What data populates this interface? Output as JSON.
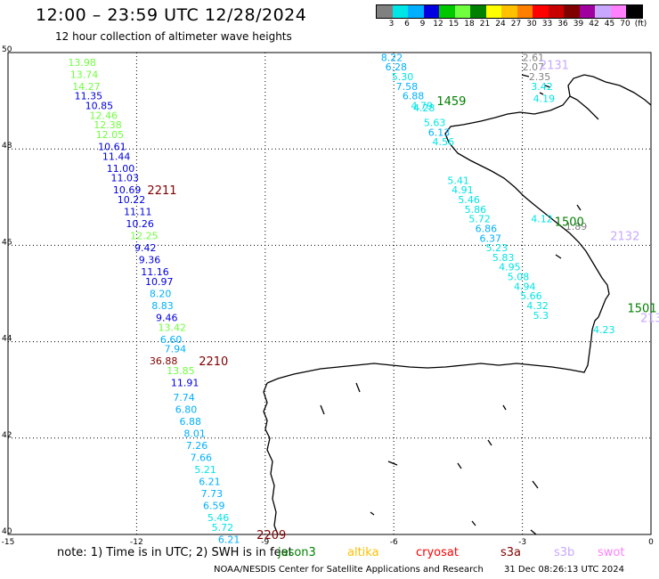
{
  "header": {
    "title": "12:00 – 23:59 UTC 12/28/2024",
    "subtitle": "12 hour collection of altimeter wave heights"
  },
  "legend": {
    "unit": "(ft)",
    "labels": [
      "3",
      "6",
      "9",
      "12",
      "15",
      "18",
      "21",
      "24",
      "27",
      "30",
      "33",
      "36",
      "39",
      "42",
      "45",
      "70"
    ],
    "colors": [
      "#808080",
      "#00e5e5",
      "#00b0ff",
      "#0000e0",
      "#00c800",
      "#70ff40",
      "#008000",
      "#ffff00",
      "#ffc000",
      "#ff8000",
      "#ff0000",
      "#c80000",
      "#800000",
      "#a000a0",
      "#c8a8ff",
      "#ff80ff",
      "#000000"
    ]
  },
  "axes": {
    "x_labels": [
      "-15",
      "-12",
      "-9",
      "-6",
      "-3",
      "0"
    ],
    "y_labels": [
      "50",
      "48",
      "46",
      "44",
      "42",
      "40"
    ]
  },
  "tracks": [
    {
      "pass": "2209",
      "pass_color": "#800000",
      "color_dots": "#00b0ff",
      "points": [
        {
          "v": "13.98",
          "lon": -13.6,
          "lat": 49.8,
          "c": "#70ff40"
        },
        {
          "v": "13.74",
          "lon": -13.55,
          "lat": 49.55,
          "c": "#70ff40"
        },
        {
          "v": "14.27",
          "lon": -13.5,
          "lat": 49.3,
          "c": "#70ff40"
        },
        {
          "v": "11.35",
          "lon": -13.45,
          "lat": 49.1,
          "c": "#0000e0"
        },
        {
          "v": "10.85",
          "lon": -13.2,
          "lat": 48.9,
          "c": "#0000e0"
        },
        {
          "v": "12.46",
          "lon": -13.1,
          "lat": 48.7,
          "c": "#70ff40"
        },
        {
          "v": "12.38",
          "lon": -13.0,
          "lat": 48.5,
          "c": "#70ff40"
        },
        {
          "v": "12.05",
          "lon": -12.95,
          "lat": 48.3,
          "c": "#70ff40"
        },
        {
          "v": "10.61",
          "lon": -12.9,
          "lat": 48.05,
          "c": "#0000e0"
        },
        {
          "v": "11.44",
          "lon": -12.8,
          "lat": 47.85,
          "c": "#0000e0"
        },
        {
          "v": "11.00",
          "lon": -12.7,
          "lat": 47.6,
          "c": "#0000e0"
        },
        {
          "v": "11.03",
          "lon": -12.6,
          "lat": 47.4,
          "c": "#0000e0"
        },
        {
          "v": "10.69",
          "lon": -12.55,
          "lat": 47.15,
          "c": "#0000e0"
        },
        {
          "v": "10.22",
          "lon": -12.45,
          "lat": 46.95,
          "c": "#0000e0"
        },
        {
          "v": "11.11",
          "lon": -12.3,
          "lat": 46.7,
          "c": "#0000e0"
        },
        {
          "v": "10.26",
          "lon": -12.25,
          "lat": 46.45,
          "c": "#0000e0"
        },
        {
          "v": "12.25",
          "lon": -12.15,
          "lat": 46.2,
          "c": "#70ff40"
        },
        {
          "v": "9.42",
          "lon": -12.05,
          "lat": 45.95,
          "c": "#0000e0"
        },
        {
          "v": "9.36",
          "lon": -11.95,
          "lat": 45.7,
          "c": "#0000e0"
        },
        {
          "v": "11.16",
          "lon": -11.9,
          "lat": 45.45,
          "c": "#0000e0"
        },
        {
          "v": "10.97",
          "lon": -11.8,
          "lat": 45.25,
          "c": "#0000e0"
        },
        {
          "v": "8.20",
          "lon": -11.7,
          "lat": 45.0,
          "c": "#00b0ff"
        },
        {
          "v": "8.83",
          "lon": -11.65,
          "lat": 44.75,
          "c": "#00b0ff"
        },
        {
          "v": "9.46",
          "lon": -11.55,
          "lat": 44.5,
          "c": "#0000e0"
        },
        {
          "v": "13.42",
          "lon": -11.5,
          "lat": 44.3,
          "c": "#70ff40"
        },
        {
          "v": "6.60",
          "lon": -11.45,
          "lat": 44.05,
          "c": "#00b0ff"
        },
        {
          "v": "7.94",
          "lon": -11.35,
          "lat": 43.85,
          "c": "#00b0ff"
        },
        {
          "v": "36.88",
          "lon": -11.7,
          "lat": 43.6,
          "c": "#800000"
        },
        {
          "v": "13.85",
          "lon": -11.3,
          "lat": 43.4,
          "c": "#70ff40"
        },
        {
          "v": "11.91",
          "lon": -11.2,
          "lat": 43.15,
          "c": "#0000e0"
        },
        {
          "v": "7.74",
          "lon": -11.15,
          "lat": 42.85,
          "c": "#00b0ff"
        },
        {
          "v": "6.80",
          "lon": -11.1,
          "lat": 42.6,
          "c": "#00b0ff"
        },
        {
          "v": "6.88",
          "lon": -11.0,
          "lat": 42.35,
          "c": "#00b0ff"
        },
        {
          "v": "8.01",
          "lon": -10.9,
          "lat": 42.1,
          "c": "#00b0ff"
        },
        {
          "v": "7.26",
          "lon": -10.85,
          "lat": 41.85,
          "c": "#00b0ff"
        },
        {
          "v": "7.66",
          "lon": -10.75,
          "lat": 41.6,
          "c": "#00b0ff"
        },
        {
          "v": "5.21",
          "lon": -10.65,
          "lat": 41.35,
          "c": "#00e5e5"
        },
        {
          "v": "6.21",
          "lon": -10.55,
          "lat": 41.1,
          "c": "#00b0ff"
        },
        {
          "v": "7.73",
          "lon": -10.5,
          "lat": 40.85,
          "c": "#00b0ff"
        },
        {
          "v": "6.59",
          "lon": -10.45,
          "lat": 40.6,
          "c": "#00b0ff"
        },
        {
          "v": "5.46",
          "lon": -10.35,
          "lat": 40.35,
          "c": "#00e5e5"
        },
        {
          "v": "5.72",
          "lon": -10.25,
          "lat": 40.15,
          "c": "#00e5e5"
        },
        {
          "v": "6.21",
          "lon": -10.1,
          "lat": 39.9,
          "c": "#00b0ff"
        }
      ]
    }
  ],
  "pass_labels": [
    {
      "text": "2211",
      "lon": -11.75,
      "lat": 47.15,
      "c": "#800000"
    },
    {
      "text": "2210",
      "lon": -10.55,
      "lat": 43.6,
      "c": "#800000"
    },
    {
      "text": "2209",
      "lon": -9.2,
      "lat": 40.0,
      "c": "#800000"
    },
    {
      "text": "1459",
      "lon": -5.0,
      "lat": 49.0,
      "c": "#008000"
    },
    {
      "text": "2131",
      "lon": -2.6,
      "lat": 49.75,
      "c": "#c8a8ff"
    },
    {
      "text": "1500",
      "lon": -2.25,
      "lat": 46.5,
      "c": "#008000"
    },
    {
      "text": "2132",
      "lon": -0.95,
      "lat": 46.2,
      "c": "#c8a8ff"
    },
    {
      "text": "1501",
      "lon": -0.55,
      "lat": 44.7,
      "c": "#008000"
    },
    {
      "text": "213",
      "lon": -0.25,
      "lat": 44.5,
      "c": "#c8a8ff"
    }
  ],
  "coastal_track": [
    {
      "v": "8.22",
      "lon": -6.3,
      "lat": 49.9,
      "c": "#00b0ff"
    },
    {
      "v": "6.28",
      "lon": -6.2,
      "lat": 49.7,
      "c": "#00b0ff"
    },
    {
      "v": "5.30",
      "lon": -6.05,
      "lat": 49.5,
      "c": "#00e5e5"
    },
    {
      "v": "7.58",
      "lon": -5.95,
      "lat": 49.3,
      "c": "#00b0ff"
    },
    {
      "v": "6.88",
      "lon": -5.8,
      "lat": 49.1,
      "c": "#00b0ff"
    },
    {
      "v": "4.79",
      "lon": -5.6,
      "lat": 48.9,
      "c": "#00e5e5"
    },
    {
      "v": "4.28",
      "lon": -5.55,
      "lat": 48.85,
      "c": "#00e5e5"
    },
    {
      "v": "5.63",
      "lon": -5.3,
      "lat": 48.55,
      "c": "#00e5e5"
    },
    {
      "v": "6.13",
      "lon": -5.2,
      "lat": 48.35,
      "c": "#00b0ff"
    },
    {
      "v": "4.56",
      "lon": -5.1,
      "lat": 48.15,
      "c": "#00e5e5"
    },
    {
      "v": "5.41",
      "lon": -4.75,
      "lat": 47.35,
      "c": "#00e5e5"
    },
    {
      "v": "4.91",
      "lon": -4.65,
      "lat": 47.15,
      "c": "#00e5e5"
    },
    {
      "v": "5.46",
      "lon": -4.5,
      "lat": 46.95,
      "c": "#00e5e5"
    },
    {
      "v": "5.86",
      "lon": -4.35,
      "lat": 46.75,
      "c": "#00e5e5"
    },
    {
      "v": "5.72",
      "lon": -4.25,
      "lat": 46.55,
      "c": "#00e5e5"
    },
    {
      "v": "6.86",
      "lon": -4.1,
      "lat": 46.35,
      "c": "#00b0ff"
    },
    {
      "v": "6.37",
      "lon": -4.0,
      "lat": 46.15,
      "c": "#00b0ff"
    },
    {
      "v": "5.23",
      "lon": -3.85,
      "lat": 45.95,
      "c": "#00e5e5"
    },
    {
      "v": "5.83",
      "lon": -3.7,
      "lat": 45.75,
      "c": "#00e5e5"
    },
    {
      "v": "4.95",
      "lon": -3.55,
      "lat": 45.55,
      "c": "#00e5e5"
    },
    {
      "v": "5.08",
      "lon": -3.35,
      "lat": 45.35,
      "c": "#00e5e5"
    },
    {
      "v": "4.94",
      "lon": -3.2,
      "lat": 45.15,
      "c": "#00e5e5"
    },
    {
      "v": "5.66",
      "lon": -3.05,
      "lat": 44.95,
      "c": "#00e5e5"
    },
    {
      "v": "4.32",
      "lon": -2.9,
      "lat": 44.75,
      "c": "#00e5e5"
    },
    {
      "v": "5.3",
      "lon": -2.75,
      "lat": 44.55,
      "c": "#00e5e5"
    },
    {
      "v": "2.61",
      "lon": -3.0,
      "lat": 49.9,
      "c": "#808080"
    },
    {
      "v": "2.07",
      "lon": -3.0,
      "lat": 49.7,
      "c": "#808080"
    },
    {
      "v": "2.35",
      "lon": -2.85,
      "lat": 49.5,
      "c": "#808080"
    },
    {
      "v": "3.42",
      "lon": -2.8,
      "lat": 49.3,
      "c": "#00e5e5"
    },
    {
      "v": "4.19",
      "lon": -2.75,
      "lat": 49.05,
      "c": "#00e5e5"
    },
    {
      "v": "4.12",
      "lon": -2.8,
      "lat": 46.55,
      "c": "#00e5e5"
    },
    {
      "v": "1.89",
      "lon": -2.0,
      "lat": 46.4,
      "c": "#808080"
    },
    {
      "v": "4.23",
      "lon": -1.35,
      "lat": 44.25,
      "c": "#00e5e5"
    }
  ],
  "footer": {
    "note": "note:  1) Time is in UTC; 2) SWH is in feet",
    "satellites": [
      {
        "name": "jason3",
        "color": "#008000"
      },
      {
        "name": "altika",
        "color": "#ffc000"
      },
      {
        "name": "cryosat",
        "color": "#ff0000"
      },
      {
        "name": "s3a",
        "color": "#800000"
      },
      {
        "name": "s3b",
        "color": "#c8a8ff"
      },
      {
        "name": "swot",
        "color": "#ff80ff"
      }
    ],
    "credit": "NOAA/NESDIS Center for Satellite Applications and Research",
    "timestamp": "31 Dec 08:26:13 UTC 2024"
  }
}
